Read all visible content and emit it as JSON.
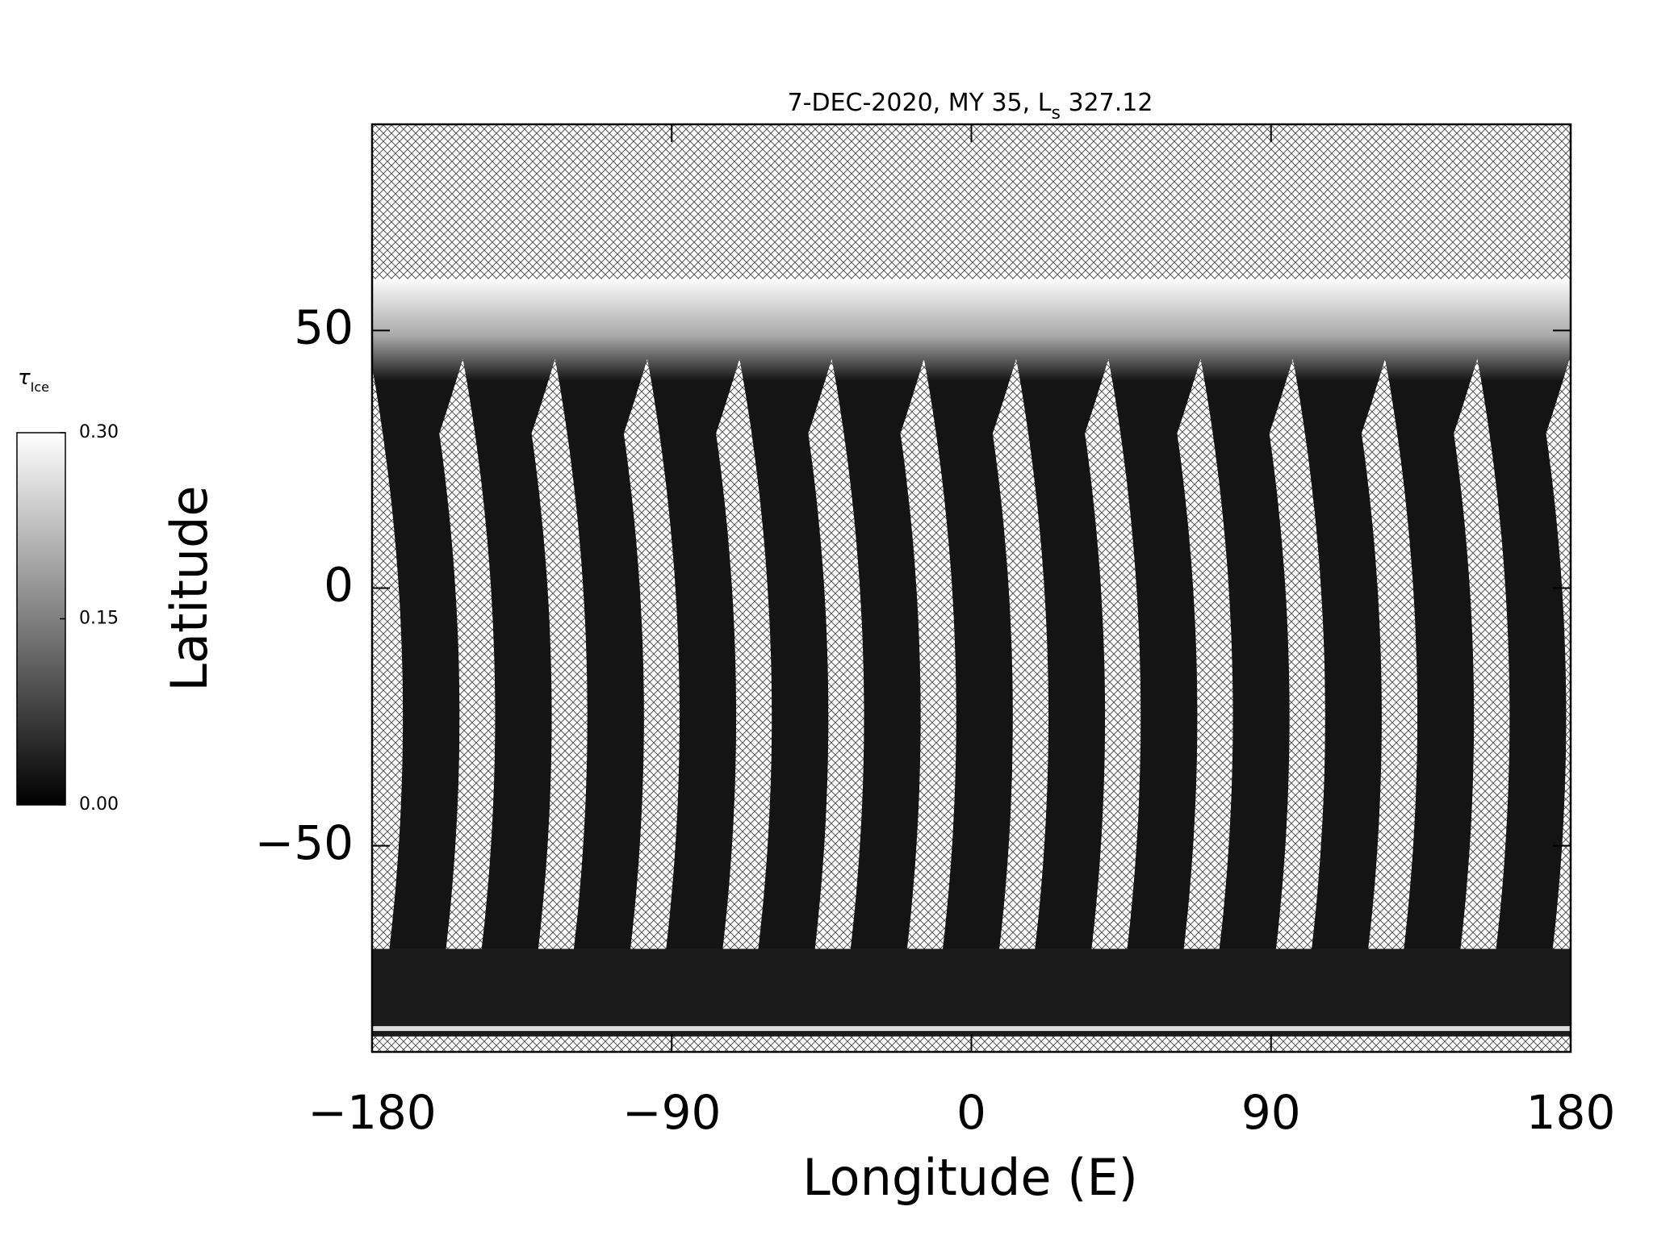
{
  "chart_data": {
    "type": "map",
    "title": {
      "main": "7-DEC-2020, MY 35,  L",
      "subscript": "s",
      "tail": " 327.12"
    },
    "x_label": "Longitude (E)",
    "y_label": "Latitude",
    "xlim": [
      -180,
      180
    ],
    "xticks": [
      {
        "value": -180,
        "label": "−180"
      },
      {
        "value": -90,
        "label": "−90"
      },
      0,
      90,
      180
    ],
    "ylim": [
      -90,
      90
    ],
    "yticks": [
      {
        "value": -50,
        "label": "−50"
      },
      0,
      50
    ],
    "colorbar": {
      "label": "τ",
      "label_subscript": "Ice",
      "lim": [
        0,
        0.3
      ],
      "ticks": [
        {
          "value": 0,
          "label": "0.00"
        },
        {
          "value": 0.15,
          "label": "0.15"
        },
        {
          "value": 0.3,
          "label": "0.30"
        }
      ]
    }
  }
}
